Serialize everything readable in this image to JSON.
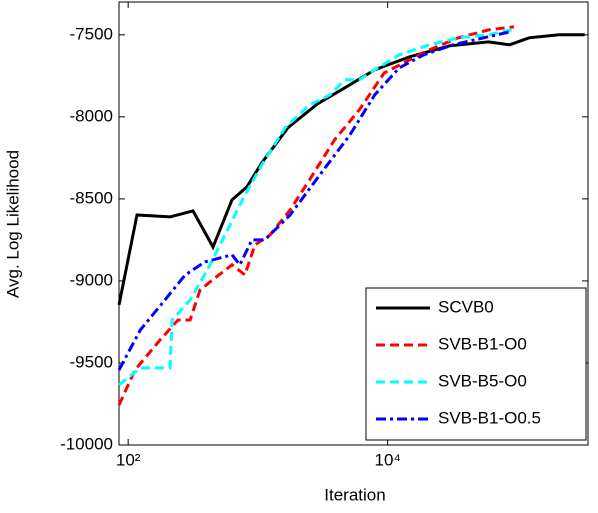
{
  "chart_data": {
    "type": "line",
    "x_label": "Iteration",
    "y_label": "Avg. Log Likelihood",
    "xscale": "log",
    "xlim": [
      85,
      350000
    ],
    "ylim": [
      -10000,
      -7300
    ],
    "xticks": [
      {
        "value": 100,
        "label": "10²"
      },
      {
        "value": 10000,
        "label": "10⁴"
      }
    ],
    "yticks": [
      -10000,
      -9500,
      -9000,
      -8500,
      -8000,
      -7500
    ],
    "legend": "lower right",
    "series": [
      {
        "name": "SCVB0",
        "color": "#000000",
        "dash": "solid",
        "x": [
          85,
          117,
          210,
          316,
          451,
          631,
          822,
          1072,
          1700,
          2890,
          4670,
          7940,
          14800,
          30000,
          60000,
          87000,
          123000,
          210000,
          330000
        ],
        "values": [
          -9146,
          -8598,
          -8610,
          -8573,
          -8793,
          -8506,
          -8427,
          -8280,
          -8067,
          -7920,
          -7823,
          -7713,
          -7634,
          -7567,
          -7543,
          -7561,
          -7518,
          -7500,
          -7500
        ]
      },
      {
        "name": "SVB-B1-O0",
        "color": "#ff0000",
        "dash": "dashed",
        "x": [
          85,
          113,
          176,
          242,
          300,
          358,
          467,
          631,
          794,
          950,
          1240,
          1770,
          2500,
          3900,
          6050,
          9400,
          14800,
          21000,
          35000,
          60000,
          94000
        ],
        "values": [
          -9756,
          -9543,
          -9360,
          -9238,
          -9238,
          -9055,
          -8982,
          -8902,
          -8963,
          -8780,
          -8720,
          -8567,
          -8384,
          -8140,
          -7957,
          -7732,
          -7652,
          -7591,
          -7518,
          -7470,
          -7451
        ]
      },
      {
        "name": "SVB-B5-O0",
        "color": "#00ffff",
        "dash": "dashed",
        "x": [
          85,
          124,
          210,
          218,
          300,
          428,
          558,
          794,
          1072,
          1620,
          2500,
          3580,
          4670,
          6050,
          7940,
          12300,
          21000,
          35000,
          60000,
          90000
        ],
        "values": [
          -9634,
          -9530,
          -9530,
          -9238,
          -9116,
          -8902,
          -8720,
          -8476,
          -8293,
          -8067,
          -7927,
          -7866,
          -7774,
          -7774,
          -7713,
          -7622,
          -7561,
          -7518,
          -7500,
          -7470
        ]
      },
      {
        "name": "SVB-B1-O0.5",
        "color": "#0000ff",
        "dash": "dashdot",
        "x": [
          85,
          124,
          192,
          275,
          391,
          631,
          726,
          899,
          1130,
          1770,
          3000,
          5120,
          7940,
          12300,
          19000,
          32000,
          55000,
          87000
        ],
        "values": [
          -9543,
          -9299,
          -9116,
          -8963,
          -8884,
          -8841,
          -8902,
          -8750,
          -8750,
          -8598,
          -8354,
          -8110,
          -7866,
          -7701,
          -7622,
          -7561,
          -7518,
          -7482
        ]
      }
    ]
  }
}
